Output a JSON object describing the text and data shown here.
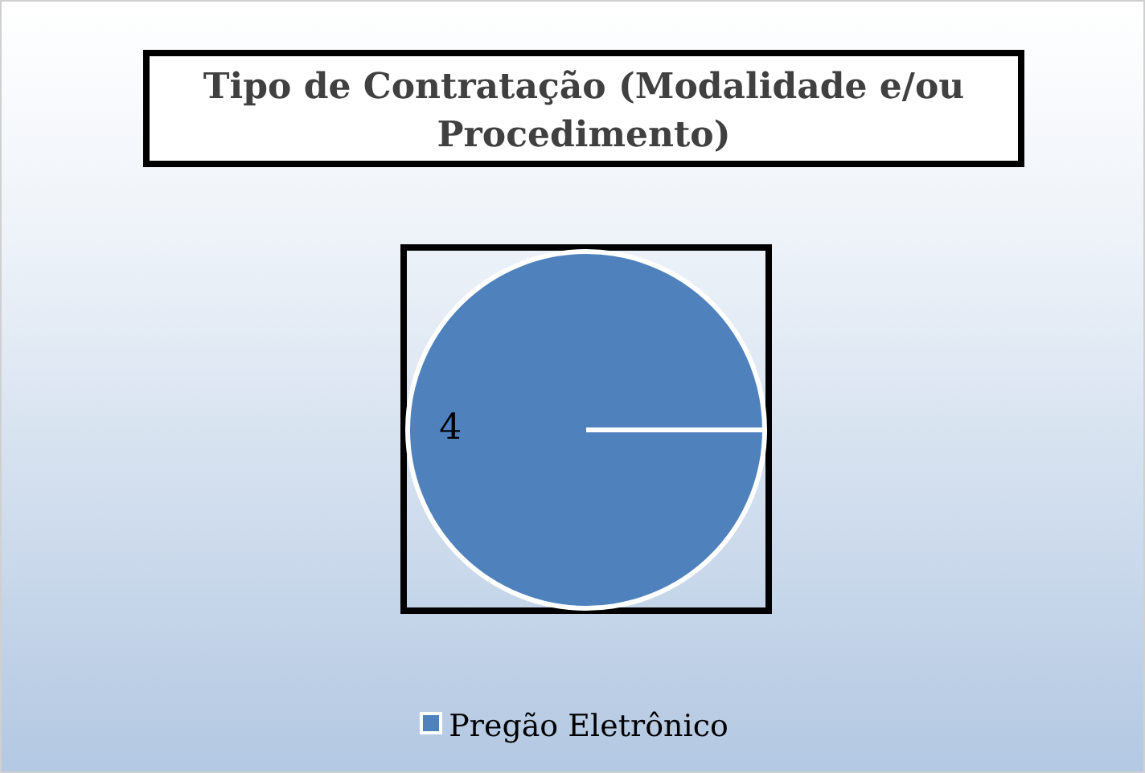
{
  "chart_data": {
    "type": "pie",
    "title": "Tipo de Contratação (Modalidade e/ou Procedimento)",
    "categories": [
      "Pregão Eletrônico"
    ],
    "values": [
      4
    ],
    "colors": [
      "#4f81bd"
    ],
    "data_labels": true,
    "legend": "bottom"
  }
}
